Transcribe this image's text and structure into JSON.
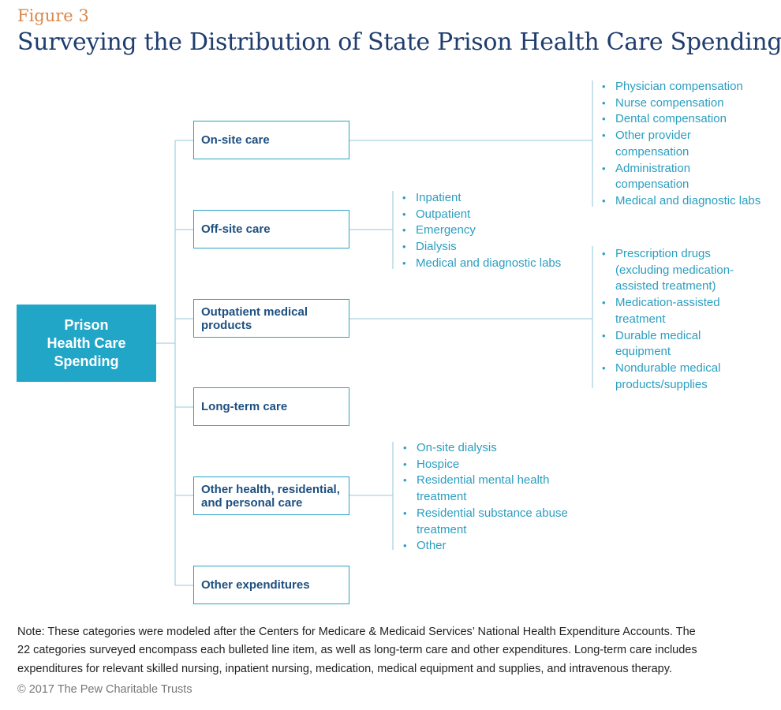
{
  "figure": {
    "label": "Figure 3",
    "title": "Surveying the Distribution of State Prison Health Care Spending"
  },
  "root": {
    "lines": [
      "Prison",
      "Health Care",
      "Spending"
    ]
  },
  "categories": [
    {
      "lines": [
        "On-site care"
      ]
    },
    {
      "lines": [
        "Off-site care"
      ]
    },
    {
      "lines": [
        "Outpatient medical",
        "products"
      ]
    },
    {
      "lines": [
        "Long-term care"
      ]
    },
    {
      "lines": [
        "Other health, residential,",
        "and personal care"
      ]
    },
    {
      "lines": [
        "Other expenditures"
      ]
    }
  ],
  "detail_lists": {
    "on_site": [
      {
        "lines": [
          "Physician compensation"
        ]
      },
      {
        "lines": [
          "Nurse compensation"
        ]
      },
      {
        "lines": [
          "Dental compensation"
        ]
      },
      {
        "lines": [
          "Other provider",
          "compensation"
        ]
      },
      {
        "lines": [
          "Administration",
          "compensation"
        ]
      },
      {
        "lines": [
          "Medical and diagnostic labs"
        ]
      }
    ],
    "off_site": [
      {
        "lines": [
          "Inpatient"
        ]
      },
      {
        "lines": [
          "Outpatient"
        ]
      },
      {
        "lines": [
          "Emergency"
        ]
      },
      {
        "lines": [
          "Dialysis"
        ]
      },
      {
        "lines": [
          "Medical and diagnostic labs"
        ]
      }
    ],
    "outpatient_products": [
      {
        "lines": [
          "Prescription drugs",
          "(excluding medication-",
          "assisted treatment)"
        ]
      },
      {
        "lines": [
          "Medication-assisted",
          "treatment"
        ]
      },
      {
        "lines": [
          "Durable medical",
          "equipment"
        ]
      },
      {
        "lines": [
          "Nondurable medical",
          "products/supplies"
        ]
      }
    ],
    "other_health": [
      {
        "lines": [
          "On-site dialysis"
        ]
      },
      {
        "lines": [
          "Hospice"
        ]
      },
      {
        "lines": [
          "Residential mental health",
          "treatment"
        ]
      },
      {
        "lines": [
          "Residential substance abuse",
          "treatment"
        ]
      },
      {
        "lines": [
          "Other"
        ]
      }
    ]
  },
  "note": {
    "lines": [
      "Note: These categories were modeled after the Centers for Medicare & Medicaid Services’ National Health Expenditure Accounts. The",
      "22 categories surveyed encompass each bulleted line item, as well as long-term care and other expenditures. Long-term care includes",
      "expenditures for relevant skilled nursing, inpatient nursing, medication, medical equipment and supplies, and intravenous therapy."
    ]
  },
  "copyright": "© 2017 The Pew Charitable Trusts",
  "colors": {
    "accent": "#22a6c8",
    "bullet_text": "#2b9ec0",
    "box_border": "#2aa3c3",
    "box_text": "#1d4f80",
    "title": "#1f3d6e",
    "figure_label": "#d9874a",
    "connector": "#a9d3e2"
  }
}
